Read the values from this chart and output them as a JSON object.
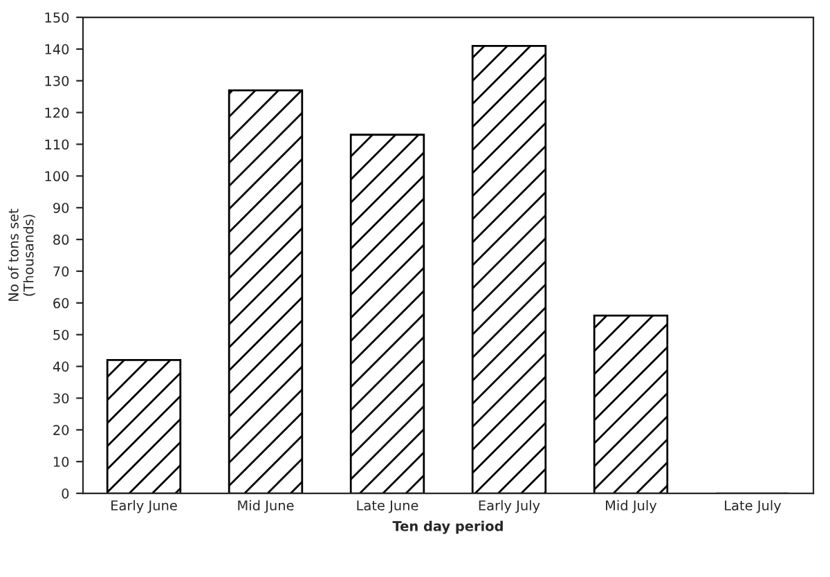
{
  "chart_data": {
    "type": "bar",
    "xlabel": "Ten day period",
    "ylabel": "No of tons set\n(Thousands)",
    "categories": [
      "Early June",
      "Mid June",
      "Late June",
      "Early July",
      "Mid July",
      "Late July"
    ],
    "values": [
      42,
      127,
      113,
      141,
      56,
      0
    ],
    "color": "#000000",
    "ylim": [
      0,
      150
    ],
    "yticks": [
      0,
      10,
      20,
      30,
      40,
      50,
      60,
      70,
      80,
      90,
      100,
      110,
      120,
      130,
      140,
      150
    ],
    "grid": false,
    "legend": false
  }
}
